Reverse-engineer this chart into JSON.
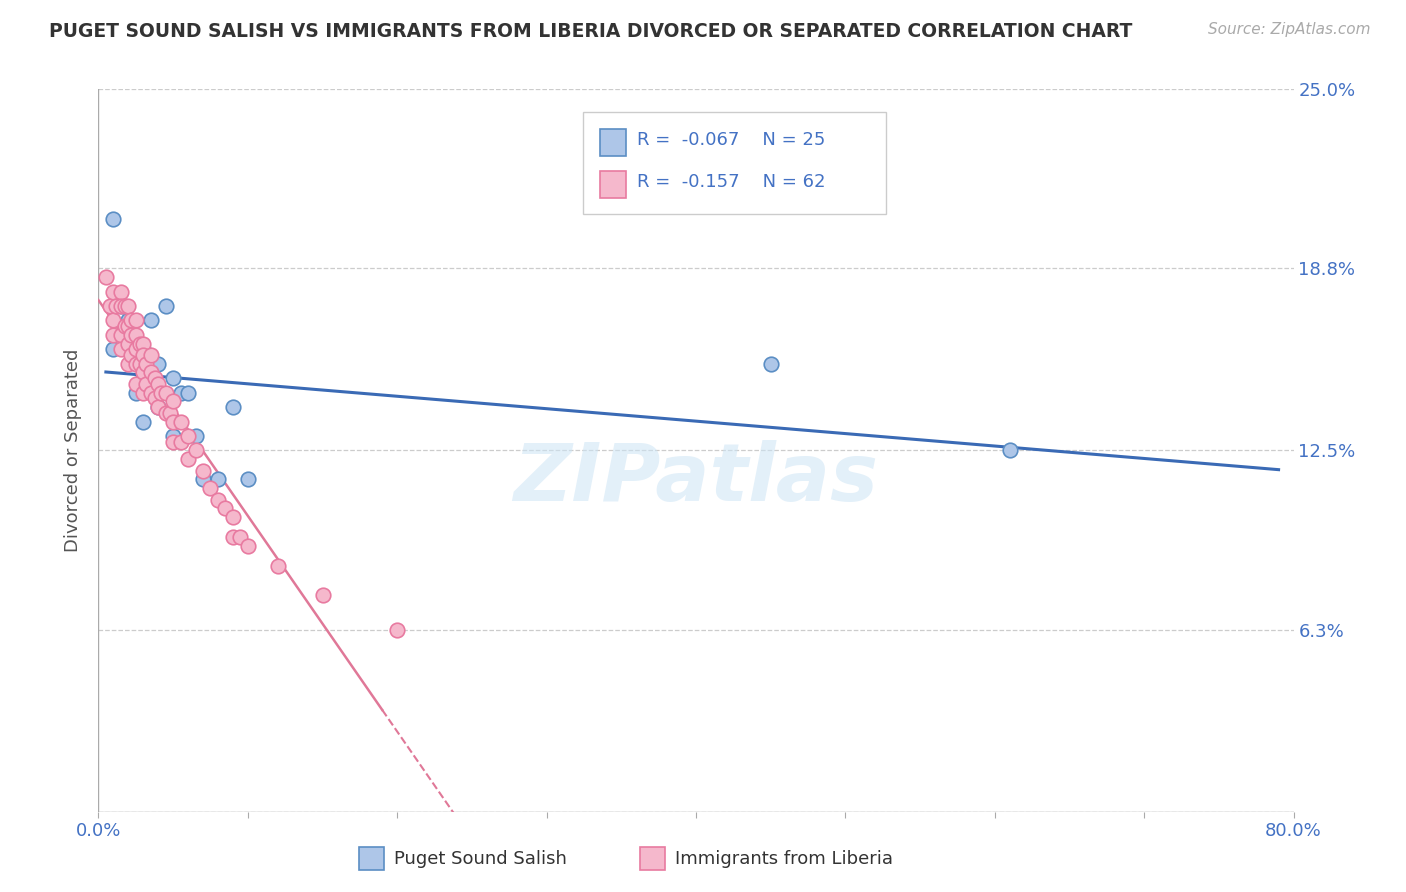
{
  "title": "PUGET SOUND SALISH VS IMMIGRANTS FROM LIBERIA DIVORCED OR SEPARATED CORRELATION CHART",
  "source_text": "Source: ZipAtlas.com",
  "ylabel": "Divorced or Separated",
  "watermark": "ZIPatlas",
  "xlim": [
    0.0,
    0.8
  ],
  "ylim": [
    0.0,
    0.25
  ],
  "xticks": [
    0.0,
    0.1,
    0.2,
    0.3,
    0.4,
    0.5,
    0.6,
    0.7,
    0.8
  ],
  "xticklabels": [
    "0.0%",
    "",
    "",
    "",
    "",
    "",
    "",
    "",
    "80.0%"
  ],
  "yticks_right": [
    0.0,
    0.063,
    0.125,
    0.188,
    0.25
  ],
  "yticklabels_right": [
    "",
    "6.3%",
    "12.5%",
    "18.8%",
    "25.0%"
  ],
  "grid_color": "#cccccc",
  "background_color": "#ffffff",
  "series1_color": "#aec6e8",
  "series1_edge": "#5b8ec4",
  "series1_label": "Puget Sound Salish",
  "series1_line_color": "#3a6ab5",
  "series2_color": "#f5b8cc",
  "series2_edge": "#e87aa0",
  "series2_label": "Immigrants from Liberia",
  "series2_line_color": "#e07898",
  "title_color": "#333333",
  "axis_color": "#4472c4",
  "blue_scatter_x": [
    0.01,
    0.01,
    0.015,
    0.02,
    0.025,
    0.025,
    0.03,
    0.03,
    0.03,
    0.035,
    0.035,
    0.04,
    0.04,
    0.045,
    0.05,
    0.05,
    0.055,
    0.06,
    0.065,
    0.07,
    0.08,
    0.09,
    0.1,
    0.45,
    0.61
  ],
  "blue_scatter_y": [
    0.205,
    0.16,
    0.175,
    0.17,
    0.16,
    0.145,
    0.16,
    0.15,
    0.135,
    0.17,
    0.155,
    0.155,
    0.14,
    0.175,
    0.15,
    0.13,
    0.145,
    0.145,
    0.13,
    0.115,
    0.115,
    0.14,
    0.115,
    0.155,
    0.125
  ],
  "pink_scatter_x": [
    0.005,
    0.008,
    0.01,
    0.01,
    0.01,
    0.012,
    0.015,
    0.015,
    0.015,
    0.015,
    0.018,
    0.018,
    0.02,
    0.02,
    0.02,
    0.02,
    0.022,
    0.022,
    0.022,
    0.025,
    0.025,
    0.025,
    0.025,
    0.025,
    0.028,
    0.028,
    0.03,
    0.03,
    0.03,
    0.03,
    0.032,
    0.032,
    0.035,
    0.035,
    0.035,
    0.038,
    0.038,
    0.04,
    0.04,
    0.042,
    0.045,
    0.045,
    0.048,
    0.05,
    0.05,
    0.05,
    0.055,
    0.055,
    0.06,
    0.06,
    0.065,
    0.07,
    0.075,
    0.08,
    0.085,
    0.09,
    0.09,
    0.095,
    0.1,
    0.12,
    0.15,
    0.2
  ],
  "pink_scatter_y": [
    0.185,
    0.175,
    0.18,
    0.17,
    0.165,
    0.175,
    0.18,
    0.175,
    0.165,
    0.16,
    0.175,
    0.168,
    0.175,
    0.168,
    0.162,
    0.155,
    0.17,
    0.165,
    0.158,
    0.17,
    0.165,
    0.16,
    0.155,
    0.148,
    0.162,
    0.155,
    0.162,
    0.158,
    0.152,
    0.145,
    0.155,
    0.148,
    0.158,
    0.152,
    0.145,
    0.15,
    0.143,
    0.148,
    0.14,
    0.145,
    0.145,
    0.138,
    0.138,
    0.142,
    0.135,
    0.128,
    0.135,
    0.128,
    0.13,
    0.122,
    0.125,
    0.118,
    0.112,
    0.108,
    0.105,
    0.102,
    0.095,
    0.095,
    0.092,
    0.085,
    0.075,
    0.063
  ]
}
